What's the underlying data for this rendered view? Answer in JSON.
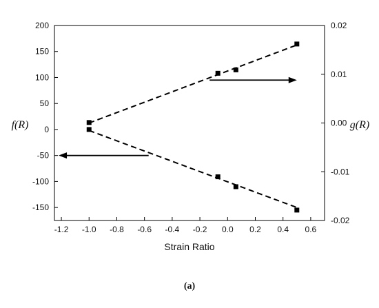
{
  "chart_data": {
    "type": "scatter",
    "xlabel": "Strain Ratio",
    "ylabel_left": "f(R)",
    "ylabel_right": "g(R)",
    "caption": "(a)",
    "xlim": [
      -1.25,
      0.7
    ],
    "ylim_left": [
      -175,
      200
    ],
    "ylim_right": [
      -0.02,
      0.02
    ],
    "x_ticks": [
      -1.2,
      -1.0,
      -0.8,
      -0.6,
      -0.4,
      -0.2,
      0.0,
      0.2,
      0.4,
      0.6
    ],
    "x_tick_labels": [
      "-1.2",
      "-1.0",
      "-0.8",
      "-0.6",
      "-0.4",
      "-0.2",
      "0.0",
      "0.2",
      "0.4",
      "0.6"
    ],
    "y_left_ticks": [
      200,
      150,
      100,
      50,
      0,
      -50,
      -100,
      -150
    ],
    "y_left_tick_labels": [
      "200",
      "150",
      "100",
      "50",
      "0",
      "-50",
      "-100",
      "-150"
    ],
    "y_right_ticks": [
      0.02,
      0.01,
      0.0,
      -0.01,
      -0.02
    ],
    "y_right_tick_labels": [
      "0.02",
      "0.01",
      "0.00",
      "-0.01",
      "-0.02"
    ],
    "series": [
      {
        "axis": "right",
        "x": [
          -1.0,
          -0.07,
          0.06,
          0.5
        ],
        "y": [
          0.0001,
          0.0102,
          0.0109,
          0.0162
        ],
        "fit": [
          [
            -1.0,
            0.0
          ],
          [
            0.5,
            0.016
          ]
        ]
      },
      {
        "axis": "left",
        "x": [
          -1.0,
          -0.07,
          0.06,
          0.5
        ],
        "y": [
          0,
          -91,
          -110,
          -155
        ],
        "fit": [
          [
            -1.0,
            -2
          ],
          [
            0.5,
            -150
          ]
        ]
      }
    ],
    "annotations": [
      {
        "type": "arrow",
        "direction": "right",
        "axis": "right",
        "x_from": -0.13,
        "x_to": 0.5,
        "y": 0.0088
      },
      {
        "type": "arrow",
        "direction": "left",
        "axis": "left",
        "x_from": -0.57,
        "x_to": -1.22,
        "y": -50
      }
    ],
    "grid": false,
    "legend": "none"
  }
}
